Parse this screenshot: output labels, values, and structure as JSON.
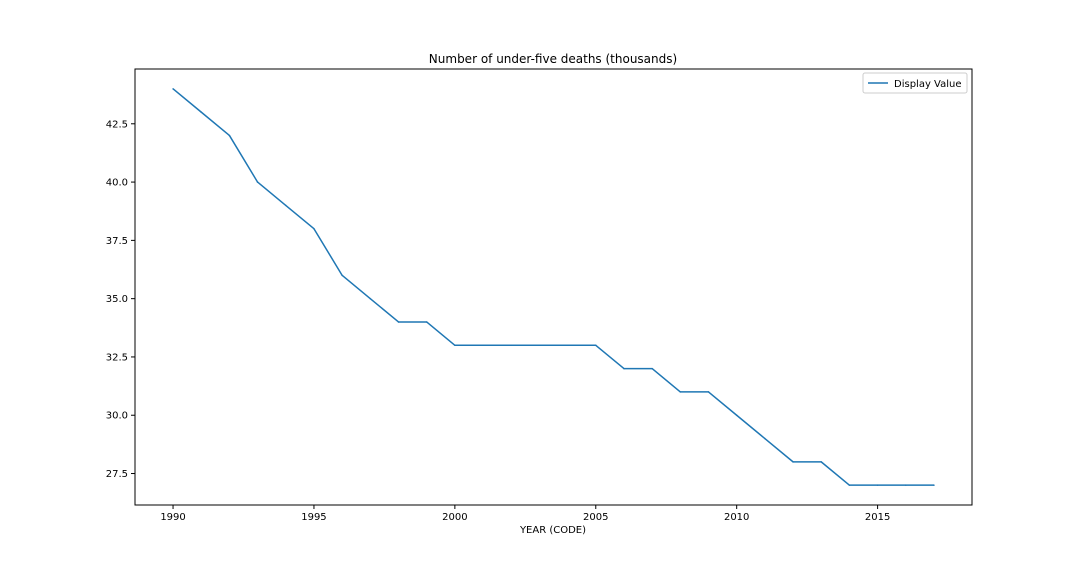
{
  "chart_data": {
    "type": "line",
    "title": "Number of under-five deaths (thousands)",
    "xlabel": "YEAR (CODE)",
    "ylabel": "",
    "x": [
      1990,
      1991,
      1992,
      1993,
      1994,
      1995,
      1996,
      1997,
      1998,
      1999,
      2000,
      2001,
      2002,
      2003,
      2004,
      2005,
      2006,
      2007,
      2008,
      2009,
      2010,
      2011,
      2012,
      2013,
      2014,
      2015,
      2016,
      2017
    ],
    "series": [
      {
        "name": "Display Value",
        "color": "#1f77b4",
        "values": [
          44,
          43,
          42,
          40,
          39,
          38,
          36,
          35,
          34,
          34,
          33,
          33,
          33,
          33,
          33,
          33,
          32,
          32,
          31,
          31,
          30,
          29,
          28,
          28,
          27,
          27,
          27,
          27
        ]
      }
    ],
    "xlim": [
      1988.65,
      2018.35
    ],
    "ylim": [
      26.15,
      44.85
    ],
    "xticks": [
      "1990",
      "1995",
      "2000",
      "2005",
      "2010",
      "2015"
    ],
    "yticks": [
      "27.5",
      "30.0",
      "32.5",
      "35.0",
      "37.5",
      "40.0",
      "42.5"
    ],
    "legend_position": "top-right",
    "grid": false
  }
}
